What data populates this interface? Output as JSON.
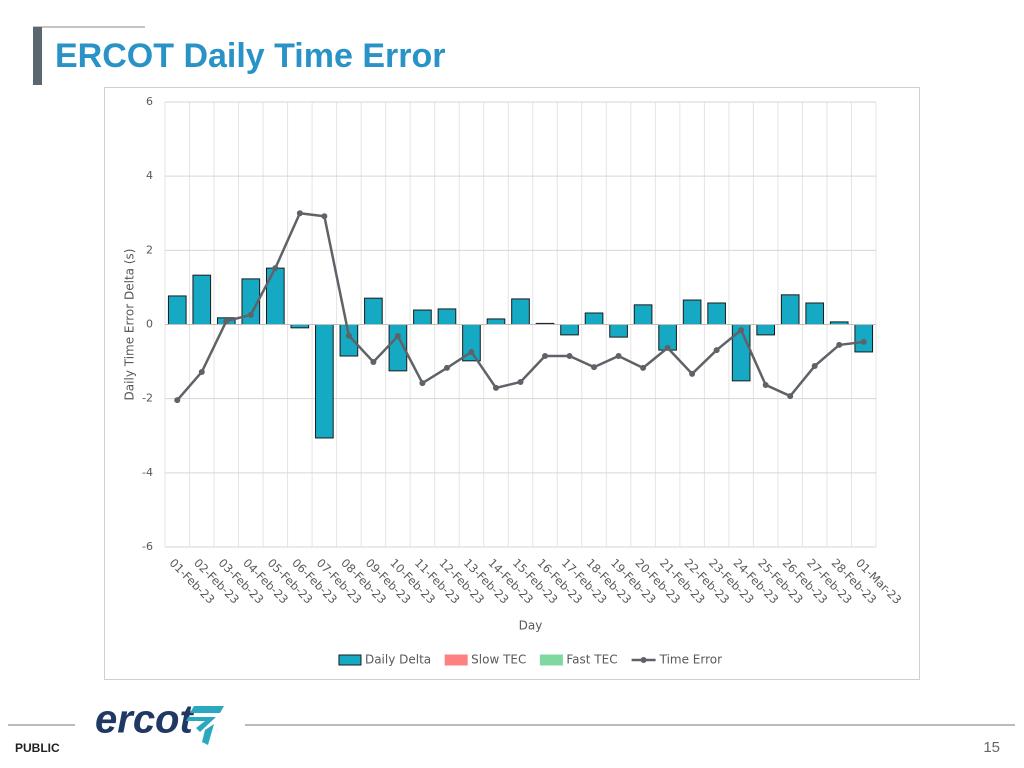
{
  "slide_title": "ERCOT Daily Time Error",
  "logo": "ercot",
  "footer": "PUBLIC",
  "page_number": "15",
  "chart_data": {
    "type": "bar",
    "xlabel": "Day",
    "ylabel": "Daily Time Error Delta (s)",
    "categories": [
      "01-Feb-23",
      "02-Feb-23",
      "03-Feb-23",
      "04-Feb-23",
      "05-Feb-23",
      "06-Feb-23",
      "07-Feb-23",
      "08-Feb-23",
      "09-Feb-23",
      "10-Feb-23",
      "11-Feb-23",
      "12-Feb-23",
      "13-Feb-23",
      "14-Feb-23",
      "15-Feb-23",
      "16-Feb-23",
      "17-Feb-23",
      "18-Feb-23",
      "19-Feb-23",
      "20-Feb-23",
      "21-Feb-23",
      "22-Feb-23",
      "23-Feb-23",
      "24-Feb-23",
      "25-Feb-23",
      "26-Feb-23",
      "27-Feb-23",
      "28-Feb-23",
      "01-Mar-23"
    ],
    "series": [
      {
        "name": "Daily Delta",
        "type": "bar",
        "color": "#16a9c3",
        "values": [
          0.77,
          1.33,
          0.18,
          1.23,
          1.52,
          -0.09,
          -3.06,
          -0.85,
          0.71,
          -1.25,
          0.39,
          0.42,
          -0.98,
          0.15,
          0.69,
          0.03,
          -0.28,
          0.31,
          -0.34,
          0.53,
          -0.69,
          0.66,
          0.58,
          -1.52,
          -0.28,
          0.8,
          0.58,
          0.07,
          -0.74
        ]
      },
      {
        "name": "Slow TEC",
        "type": "bar",
        "color": "#ff8080",
        "values": [
          null,
          null,
          null,
          null,
          null,
          null,
          null,
          null,
          null,
          null,
          null,
          null,
          null,
          null,
          null,
          null,
          null,
          null,
          null,
          null,
          null,
          null,
          null,
          null,
          null,
          null,
          null,
          null,
          null
        ]
      },
      {
        "name": "Fast TEC",
        "type": "bar",
        "color": "#80d8a0",
        "values": [
          null,
          null,
          null,
          null,
          null,
          null,
          null,
          null,
          null,
          null,
          null,
          null,
          null,
          null,
          null,
          null,
          null,
          null,
          null,
          null,
          null,
          null,
          null,
          null,
          null,
          null,
          null,
          null,
          null
        ]
      },
      {
        "name": "Time Error",
        "type": "line",
        "color": "#5f6368",
        "values": [
          -2.04,
          -1.28,
          0.09,
          0.26,
          1.52,
          3.0,
          2.92,
          -0.3,
          -1.01,
          -0.31,
          -1.58,
          -1.17,
          -0.74,
          -1.71,
          -1.55,
          -0.85,
          -0.85,
          -1.15,
          -0.85,
          -1.17,
          -0.63,
          -1.33,
          -0.69,
          -0.15,
          -1.63,
          -1.93,
          -1.12,
          -0.55,
          -0.47
        ]
      }
    ],
    "ylim": [
      -6,
      6
    ],
    "yticks": [
      -6,
      -4,
      -2,
      0,
      2,
      4,
      6
    ],
    "grid": true,
    "legend": "bottom"
  }
}
